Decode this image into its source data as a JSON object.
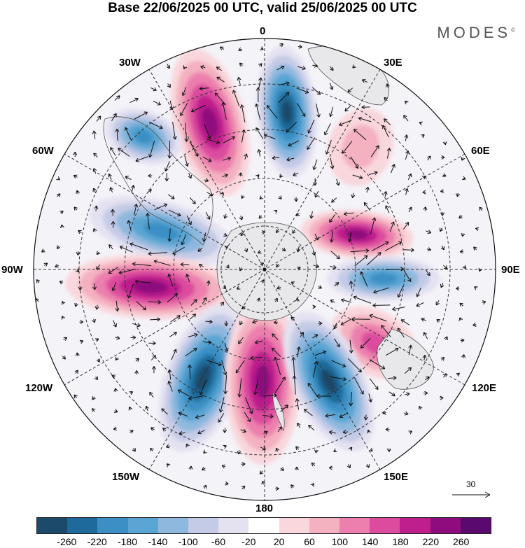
{
  "title": "Base 22/06/2025 00 UTC, valid 25/06/2025 00 UTC",
  "brand": "MODES",
  "brand_mark": "©",
  "longitude_labels": {
    "north": "0",
    "ne": "30E",
    "e1": "60E",
    "east": "90E",
    "e2": "120E",
    "se": "150E",
    "south": "180",
    "sw": "150W",
    "w2": "120W",
    "west": "90W",
    "w1": "60W",
    "nw": "30W"
  },
  "reference_vector": "30",
  "colorbar": {
    "colors": [
      "#1b4a6b",
      "#1e6a9a",
      "#3b8fc4",
      "#5aa5d3",
      "#8fb8de",
      "#c4cbe6",
      "#e4e2f1",
      "#ffffff",
      "#f9d7dc",
      "#f4b1c0",
      "#ec7fad",
      "#dc4b9e",
      "#be1f8c",
      "#8e0c7e",
      "#5a0a6e"
    ],
    "ticks": [
      "-260",
      "-220",
      "-180",
      "-140",
      "-100",
      "-60",
      "-20",
      "20",
      "60",
      "100",
      "140",
      "180",
      "220",
      "260"
    ]
  },
  "anomaly_cells": [
    {
      "name": "neg",
      "color": "#1e6a9a"
    },
    {
      "name": "pos",
      "color": "#8e0c7e"
    }
  ]
}
